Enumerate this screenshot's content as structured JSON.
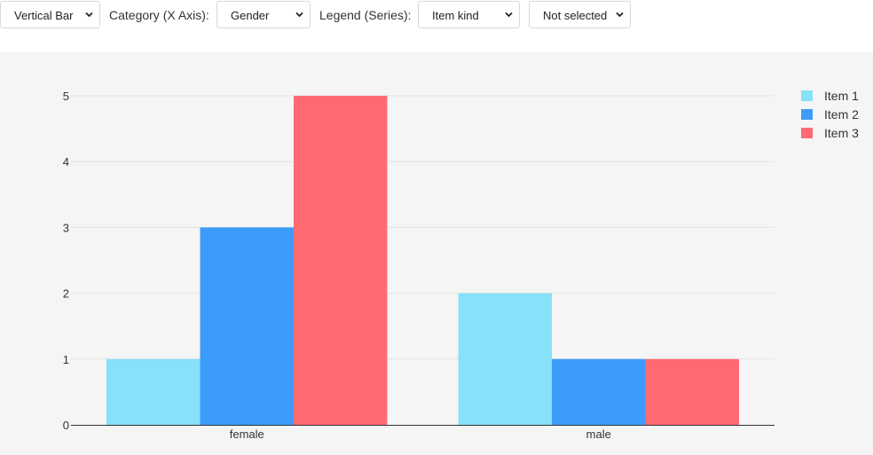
{
  "toolbar": {
    "chart_type_select": "Vertical Bar",
    "category_label": "Category (X Axis):",
    "category_select": "Gender",
    "legend_label": "Legend (Series):",
    "legend_select": "Item kind",
    "extra_select": "Not selected"
  },
  "colors": {
    "chart_background": "#f5f5f5",
    "gridline": "#e3e3e3",
    "axis": "#333333",
    "item1": "#86e1f9",
    "item2": "#3d9cf9",
    "item3": "#ff6a72"
  },
  "chart_data": {
    "type": "bar",
    "categories": [
      "female",
      "male"
    ],
    "series": [
      {
        "name": "Item 1",
        "values": [
          1,
          2
        ],
        "color": "#86e1f9"
      },
      {
        "name": "Item 2",
        "values": [
          3,
          1
        ],
        "color": "#3d9cf9"
      },
      {
        "name": "Item 3",
        "values": [
          5,
          1
        ],
        "color": "#ff6a72"
      }
    ],
    "ylim": [
      0,
      5
    ],
    "yticks": [
      0,
      1,
      2,
      3,
      4,
      5
    ],
    "grid": true,
    "legend": "top-right"
  }
}
